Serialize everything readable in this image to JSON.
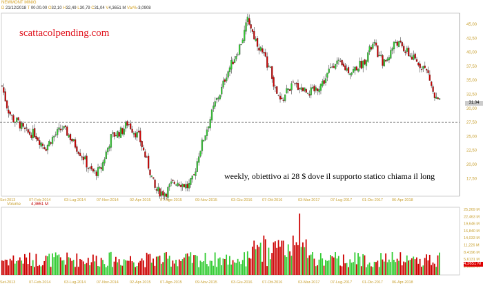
{
  "header": {
    "title": "NEWMONT MINIG",
    "date_label": "D",
    "date": "21/12/2018",
    "time_label": "T",
    "time": "00.00.00",
    "open_label": "O",
    "open": "32,10",
    "high_label": "H",
    "high": "32,49",
    "low_label": "L",
    "low": "30,79",
    "close_label": "C",
    "close": "31,04",
    "vol_label": "V",
    "volume": "4,3651 M",
    "var_label": "Var%",
    "var": "-3,0908"
  },
  "watermark": "scattacolpending.com",
  "annotation": "weekly, obiettivo ai 28 $ dove il supporto statico chiama il long",
  "volume_panel": {
    "label": "Volume",
    "value": "4,3651 M"
  },
  "colors": {
    "up": "#33cc33",
    "down": "#cc0000",
    "axis": "#c8a030"
  },
  "chart_data": {
    "type": "candlestick",
    "price_axis": {
      "ticks": [
        "45,00",
        "42,50",
        "40,00",
        "37,50",
        "35,00",
        "32,50",
        "30,00",
        "27,50",
        "25,00",
        "22,50",
        "20,00",
        "17,50"
      ],
      "values": [
        45,
        42.5,
        40,
        37.5,
        35,
        32.5,
        30,
        27.5,
        25,
        22.5,
        20,
        17.5
      ],
      "last": "31,04"
    },
    "support_level": 27.5,
    "x_labels": [
      "Set-2013",
      "07-Feb-2014",
      "03-Lug-2014",
      "07-Nov-2014",
      "02-Apr-2015",
      "07-Ago-2015",
      "09-Nov-2015",
      "03-Giu-2016",
      "07-Ott-2016",
      "03-Mar-2017",
      "07-Lug-2017",
      "01-Dic-2017",
      "06-Apr-2018"
    ],
    "closes": [
      34,
      30,
      28,
      27.5,
      26,
      25.5,
      25.5,
      24,
      23,
      24.5,
      25.5,
      26.5,
      25.5,
      24,
      22.5,
      21,
      19,
      18.5,
      19,
      22,
      25,
      25.5,
      26,
      27.5,
      26,
      25,
      22,
      19,
      15.5,
      15,
      15,
      16.5,
      17,
      16.5,
      16,
      17.5,
      22,
      25,
      28,
      31,
      33,
      36,
      38,
      40,
      42.5,
      46,
      43,
      41,
      39,
      37,
      33,
      31,
      33,
      34,
      34,
      33.5,
      33,
      33,
      34,
      35,
      37,
      38.5,
      37.5,
      37,
      36.5,
      37.5,
      38,
      40,
      41.5,
      39,
      38,
      40,
      42,
      41,
      40,
      39,
      38,
      37.5,
      36,
      32,
      31
    ],
    "volume_axis": [
      "25,269 M",
      "22,463 M",
      "19,646 M",
      "16,840 M",
      "14,033 M",
      "11,226 M",
      "8,4196 M",
      "5,6131 M",
      "2,8065 M"
    ],
    "volume_last": "4,3651 M"
  }
}
